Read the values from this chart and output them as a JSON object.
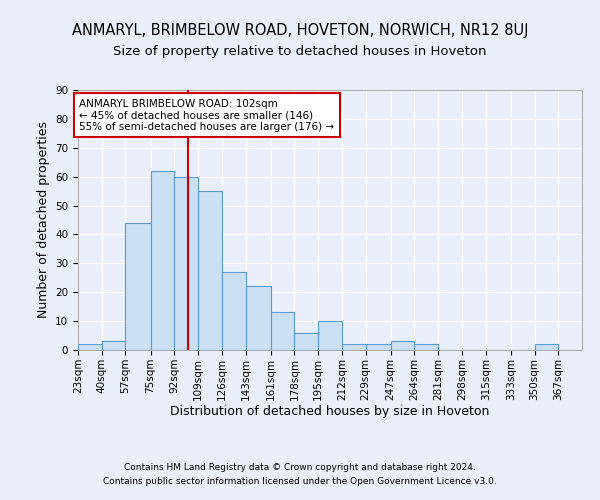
{
  "title": "ANMARYL, BRIMBELOW ROAD, HOVETON, NORWICH, NR12 8UJ",
  "subtitle": "Size of property relative to detached houses in Hoveton",
  "xlabel": "Distribution of detached houses by size in Hoveton",
  "ylabel": "Number of detached properties",
  "bin_labels": [
    "23sqm",
    "40sqm",
    "57sqm",
    "75sqm",
    "92sqm",
    "109sqm",
    "126sqm",
    "143sqm",
    "161sqm",
    "178sqm",
    "195sqm",
    "212sqm",
    "229sqm",
    "247sqm",
    "264sqm",
    "281sqm",
    "298sqm",
    "315sqm",
    "333sqm",
    "350sqm",
    "367sqm"
  ],
  "bin_edges": [
    23,
    40,
    57,
    75,
    92,
    109,
    126,
    143,
    161,
    178,
    195,
    212,
    229,
    247,
    264,
    281,
    298,
    315,
    333,
    350,
    367,
    384
  ],
  "bar_heights": [
    2,
    3,
    44,
    62,
    60,
    55,
    27,
    22,
    13,
    6,
    10,
    2,
    2,
    3,
    2,
    0,
    0,
    0,
    0,
    2,
    0
  ],
  "bar_color": "#cce0f5",
  "bar_edge_color": "#5b9bd5",
  "vline_x": 102,
  "vline_color": "#cc0000",
  "annotation_line1": "ANMARYL BRIMBELOW ROAD: 102sqm",
  "annotation_line2": "← 45% of detached houses are smaller (146)",
  "annotation_line3": "55% of semi-detached houses are larger (176) →",
  "annotation_box_color": "#ffffff",
  "annotation_box_edge": "#cc0000",
  "ylim": [
    0,
    90
  ],
  "yticks": [
    0,
    10,
    20,
    30,
    40,
    50,
    60,
    70,
    80,
    90
  ],
  "footer1": "Contains HM Land Registry data © Crown copyright and database right 2024.",
  "footer2": "Contains public sector information licensed under the Open Government Licence v3.0.",
  "background_color": "#eaf0fb",
  "grid_color": "#ffffff",
  "title_fontsize": 10.5,
  "subtitle_fontsize": 9.5,
  "tick_fontsize": 7.5,
  "ylabel_fontsize": 9,
  "xlabel_fontsize": 9
}
